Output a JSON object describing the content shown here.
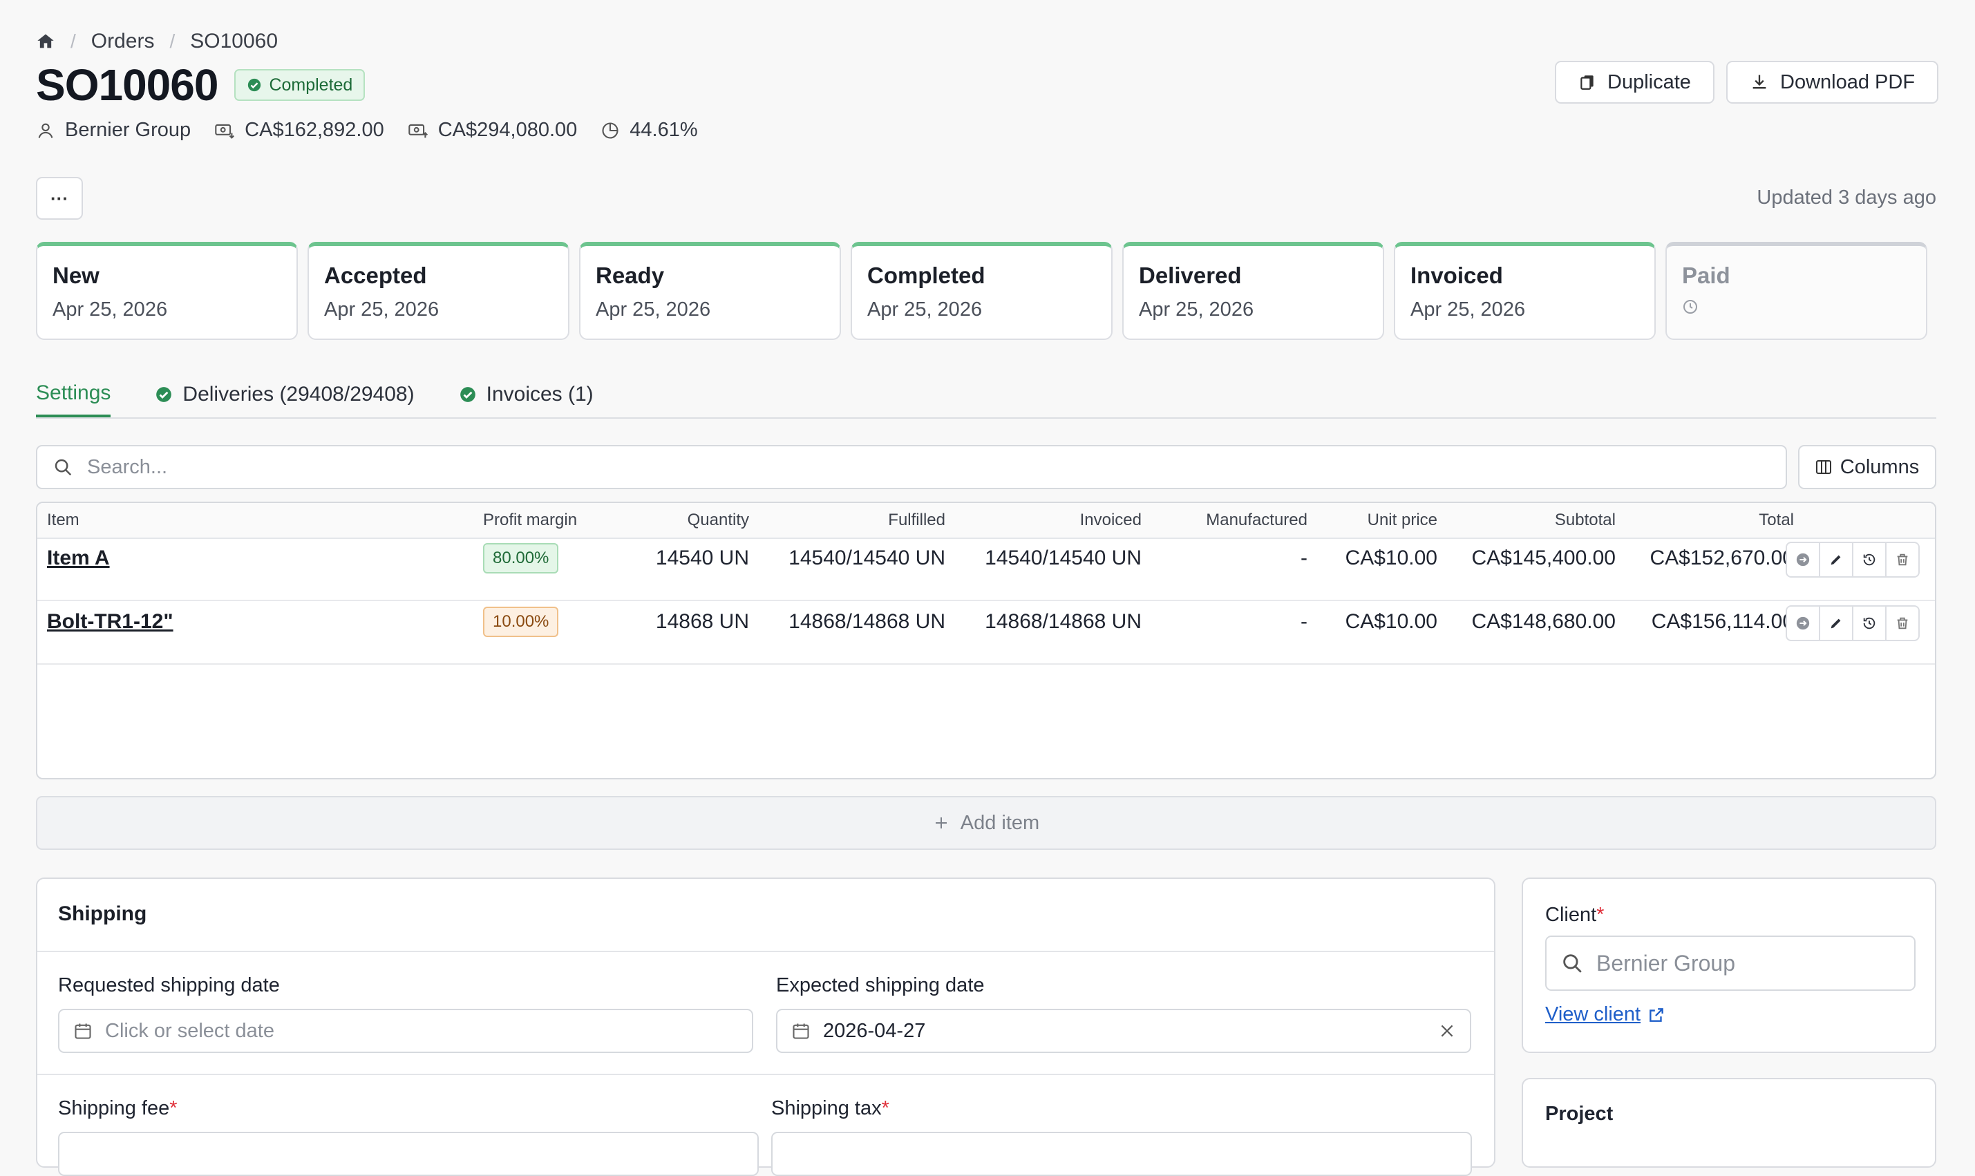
{
  "breadcrumb": {
    "home_icon": "home-icon",
    "orders": "Orders",
    "current": "SO10060"
  },
  "header": {
    "title": "SO10060",
    "status_badge": "Completed",
    "client": "Bernier Group",
    "cost": "CA$162,892.00",
    "revenue": "CA$294,080.00",
    "margin": "44.61%",
    "duplicate_label": "Duplicate",
    "download_label": "Download PDF",
    "more_label": "···",
    "updated": "Updated 3 days ago"
  },
  "steps": [
    {
      "name": "New",
      "date": "Apr 25, 2026",
      "done": true
    },
    {
      "name": "Accepted",
      "date": "Apr 25, 2026",
      "done": true
    },
    {
      "name": "Ready",
      "date": "Apr 25, 2026",
      "done": true
    },
    {
      "name": "Completed",
      "date": "Apr 25, 2026",
      "done": true
    },
    {
      "name": "Delivered",
      "date": "Apr 25, 2026",
      "done": true
    },
    {
      "name": "Invoiced",
      "date": "Apr 25, 2026",
      "done": true
    },
    {
      "name": "Paid",
      "date": "",
      "done": false
    }
  ],
  "tabs": [
    {
      "label": "Settings",
      "active": true
    },
    {
      "label": "Deliveries (29408/29408)",
      "active": false
    },
    {
      "label": "Invoices (1)",
      "active": false
    }
  ],
  "search": {
    "placeholder": "Search..."
  },
  "columns_label": "Columns",
  "table": {
    "headers": [
      "Item",
      "Profit margin",
      "Quantity",
      "Fulfilled",
      "Invoiced",
      "Manufactured",
      "Unit price",
      "Subtotal",
      "Total"
    ],
    "rows": [
      {
        "item": "Item A",
        "margin": "80.00%",
        "margin_tone": "green",
        "quantity": "14540 UN",
        "fulfilled": "14540/14540 UN",
        "invoiced": "14540/14540 UN",
        "manufactured": "-",
        "unit_price": "CA$10.00",
        "subtotal": "CA$145,400.00",
        "total": "CA$152,670.00"
      },
      {
        "item": "Bolt-TR1-12\"",
        "margin": "10.00%",
        "margin_tone": "orange",
        "quantity": "14868 UN",
        "fulfilled": "14868/14868 UN",
        "invoiced": "14868/14868 UN",
        "manufactured": "-",
        "unit_price": "CA$10.00",
        "subtotal": "CA$148,680.00",
        "total": "CA$156,114.00"
      }
    ]
  },
  "add_item_label": "Add item",
  "shipping": {
    "title": "Shipping",
    "requested_label": "Requested shipping date",
    "requested_placeholder": "Click or select date",
    "expected_label": "Expected shipping date",
    "expected_value": "2026-04-27",
    "fee_label": "Shipping fee",
    "tax_label": "Shipping tax"
  },
  "client_panel": {
    "label": "Client",
    "placeholder": "Bernier Group",
    "view_link": "View client"
  },
  "project_panel": {
    "label": "Project"
  },
  "colors": {
    "accent": "#2c8d55",
    "step_done": "#6cc48e",
    "link": "#1f5fc9",
    "required": "#e0303a"
  }
}
